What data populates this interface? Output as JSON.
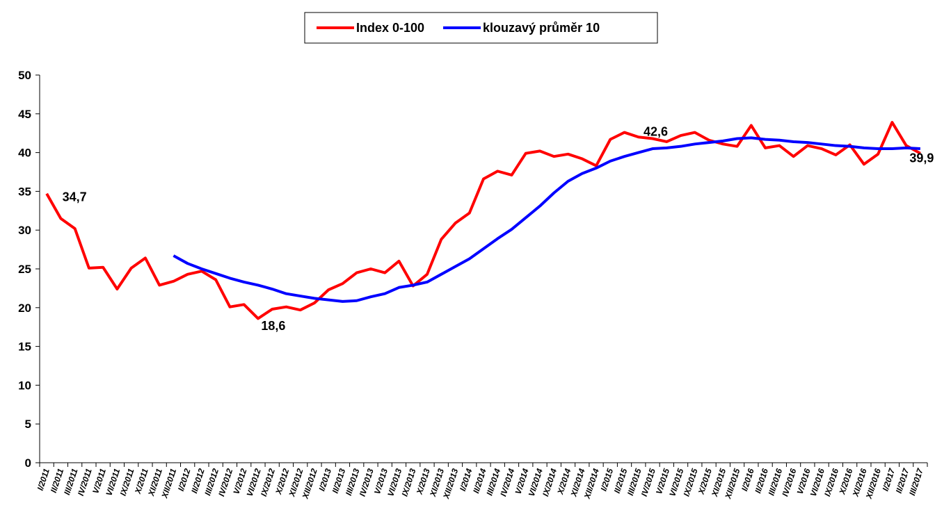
{
  "chart_data": {
    "type": "line",
    "categories": [
      "I/2011",
      "II/2011",
      "III/2011",
      "IV/2011",
      "V/2011",
      "VI/2011",
      "IX/2011",
      "X/2011",
      "XI/2011",
      "XII/2011",
      "I/2012",
      "II/2012",
      "III/2012",
      "IV/2012",
      "V/2012",
      "VI/2012",
      "IX/2012",
      "X/2012",
      "XI/2012",
      "XII/2012",
      "I/2013",
      "II/2013",
      "III/2013",
      "IV/2013",
      "V/2013",
      "VI/2013",
      "IX/2013",
      "X/2013",
      "XI/2013",
      "XII/2013",
      "I/2014",
      "II/2014",
      "III/2014",
      "IV/2014",
      "V/2014",
      "VI/2014",
      "IX/2014",
      "X/2014",
      "XI/2014",
      "XII/2014",
      "I/2015",
      "II/2015",
      "III/2015",
      "IV/2015",
      "V/2015",
      "VI/2015",
      "IX/2015",
      "X/2015",
      "XI/2015",
      "XII/2015",
      "I/2016",
      "II/2016",
      "III/2016",
      "IV/2016",
      "V/2016",
      "VI/2016",
      "IX/2016",
      "X/2016",
      "XI/2016",
      "XII/2016",
      "I/2017",
      "II/2017",
      "III/2017"
    ],
    "series": [
      {
        "name": "Index 0-100",
        "color": "#ff0000",
        "values": [
          34.7,
          31.5,
          30.2,
          25.1,
          25.2,
          22.4,
          25.1,
          26.4,
          22.9,
          23.4,
          24.3,
          24.7,
          23.6,
          20.1,
          20.4,
          18.6,
          19.8,
          20.1,
          19.7,
          20.6,
          22.3,
          23.1,
          24.5,
          25.0,
          24.5,
          26.0,
          22.8,
          24.3,
          28.8,
          30.9,
          32.2,
          36.6,
          37.6,
          37.1,
          39.9,
          40.2,
          39.5,
          39.8,
          39.2,
          38.3,
          41.7,
          42.6,
          42.0,
          41.8,
          41.4,
          42.2,
          42.6,
          41.6,
          41.1,
          40.8,
          43.5,
          40.6,
          40.9,
          39.5,
          40.9,
          40.5,
          39.7,
          41.0,
          38.5,
          39.8,
          43.9,
          40.9,
          39.9
        ],
        "value_labels": [
          "34,7",
          null,
          null,
          null,
          null,
          null,
          null,
          null,
          null,
          null,
          null,
          null,
          null,
          null,
          null,
          "18,6",
          null,
          null,
          null,
          null,
          null,
          null,
          null,
          null,
          null,
          null,
          null,
          null,
          null,
          null,
          null,
          null,
          null,
          null,
          null,
          null,
          null,
          null,
          null,
          null,
          null,
          "42,6",
          null,
          null,
          null,
          null,
          null,
          null,
          null,
          null,
          null,
          null,
          null,
          null,
          null,
          null,
          null,
          null,
          null,
          null,
          null,
          null,
          "39,9"
        ]
      },
      {
        "name": "klouzavý průměr 10",
        "color": "#0000ff",
        "values": [
          null,
          null,
          null,
          null,
          null,
          null,
          null,
          null,
          null,
          26.7,
          25.7,
          25.0,
          24.4,
          23.8,
          23.3,
          22.9,
          22.4,
          21.8,
          21.5,
          21.2,
          21.0,
          20.8,
          20.9,
          21.4,
          21.8,
          22.6,
          22.9,
          23.3,
          24.3,
          25.3,
          26.3,
          27.6,
          28.9,
          30.1,
          31.6,
          33.1,
          34.8,
          36.3,
          37.3,
          38.0,
          38.9,
          39.5,
          40.0,
          40.5,
          40.6,
          40.8,
          41.1,
          41.3,
          41.5,
          41.8,
          41.9,
          41.7,
          41.6,
          41.4,
          41.3,
          41.1,
          40.9,
          40.8,
          40.6,
          40.5,
          40.5,
          40.6,
          40.5
        ]
      }
    ],
    "ylim": [
      0,
      50
    ],
    "yticks": [
      0,
      5,
      10,
      15,
      20,
      25,
      30,
      35,
      40,
      45,
      50
    ],
    "legend": "top"
  }
}
